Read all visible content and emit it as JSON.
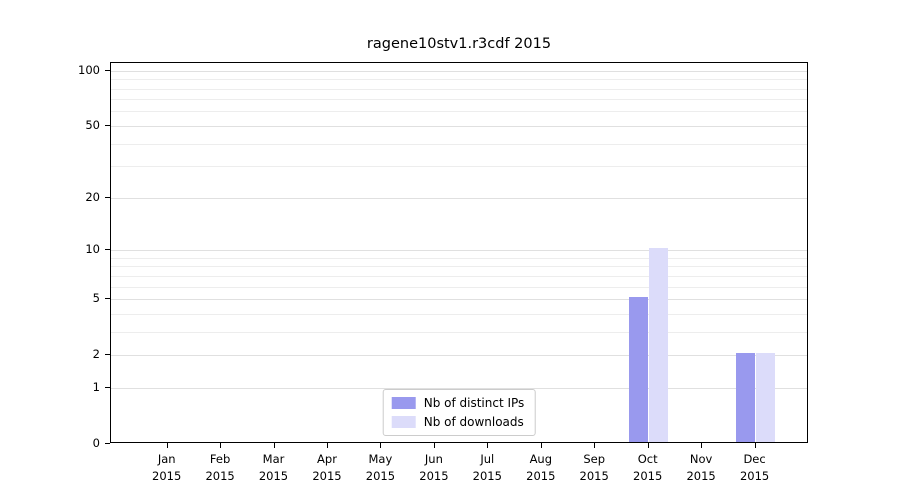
{
  "chart_data": {
    "type": "bar",
    "title": "ragene10stv1.r3cdf 2015",
    "categories": [
      "Jan",
      "Feb",
      "Mar",
      "Apr",
      "May",
      "Jun",
      "Jul",
      "Aug",
      "Sep",
      "Oct",
      "Nov",
      "Dec"
    ],
    "x_tick_second_line": "2015",
    "series": [
      {
        "name": "Nb of distinct IPs",
        "color": "#9999ee",
        "values": [
          0,
          0,
          0,
          0,
          0,
          0,
          0,
          0,
          0,
          5,
          0,
          2
        ]
      },
      {
        "name": "Nb of downloads",
        "color": "#dcdcfa",
        "values": [
          0,
          0,
          0,
          0,
          0,
          0,
          0,
          0,
          0,
          10,
          0,
          2
        ]
      }
    ],
    "yscale": "log1p",
    "ylim": [
      0,
      110
    ],
    "y_ticks": [
      0,
      1,
      2,
      5,
      10,
      20,
      50,
      100
    ],
    "y_minor_gridlines": [
      1,
      2,
      3,
      4,
      5,
      6,
      7,
      8,
      9,
      10,
      20,
      30,
      40,
      50,
      60,
      70,
      80,
      90,
      100
    ],
    "grid": true,
    "legend_position": "lower center"
  }
}
